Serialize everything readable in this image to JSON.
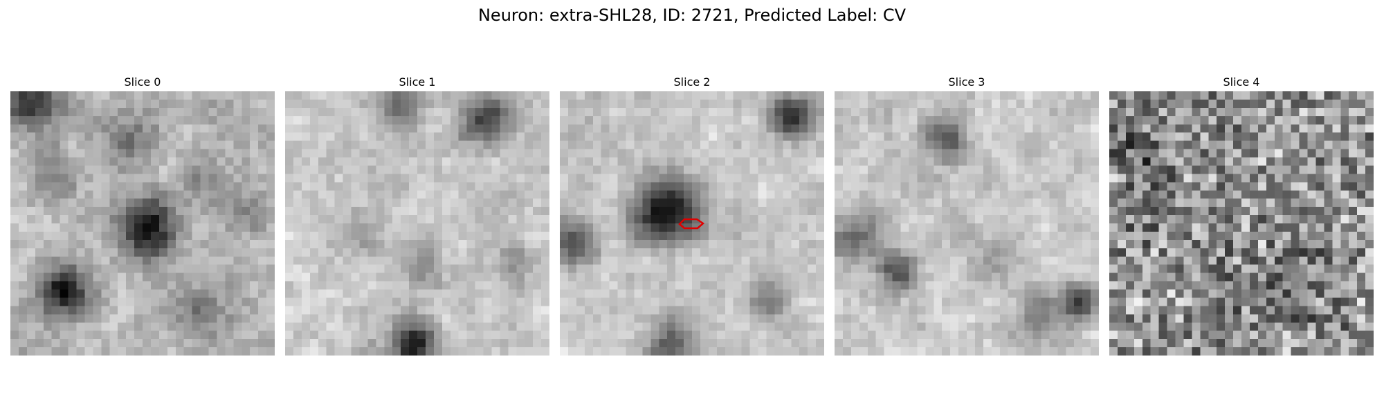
{
  "figure": {
    "title": "Neuron: extra-SHL28, ID: 2721, Predicted Label: CV",
    "roi_color": "#e00000",
    "roi_slice_index": 2
  },
  "panels": [
    {
      "title": "Slice 0"
    },
    {
      "title": "Slice 1"
    },
    {
      "title": "Slice 2"
    },
    {
      "title": "Slice 3"
    },
    {
      "title": "Slice 4"
    }
  ]
}
